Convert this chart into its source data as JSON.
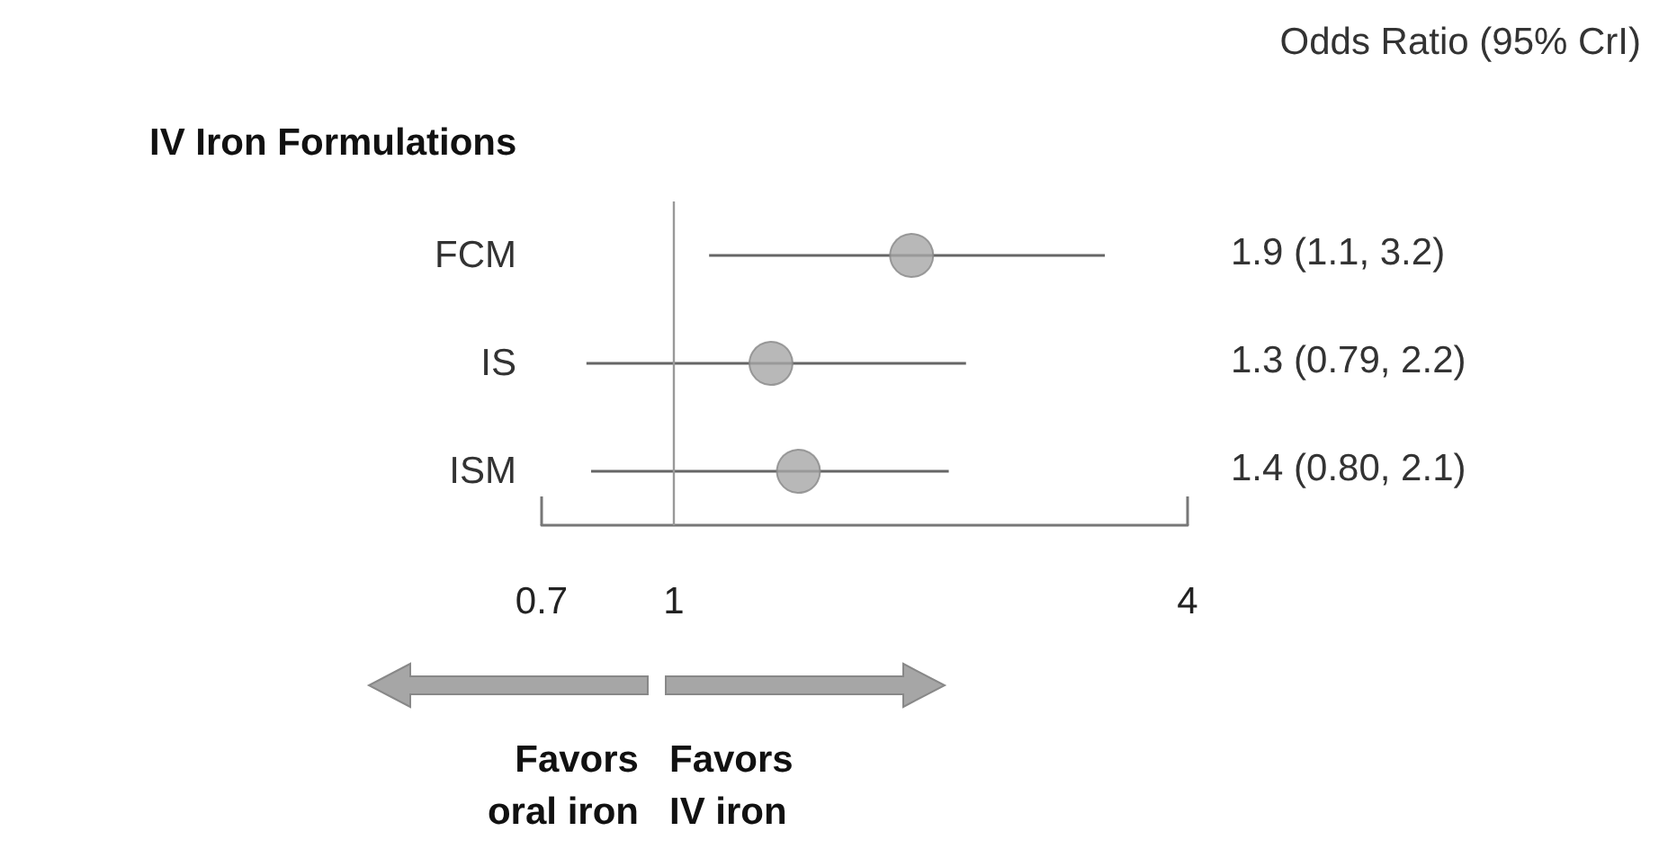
{
  "chart_data": {
    "type": "scatter",
    "title": "IV Iron Formulations",
    "subtitle": "Odds Ratio (95% CrI)",
    "orientation": "horizontal",
    "categories": [
      "FCM",
      "IS",
      "ISM"
    ],
    "values": [
      1.9,
      1.3,
      1.4
    ],
    "errors": [
      [
        1.1,
        3.2
      ],
      [
        0.79,
        2.2
      ],
      [
        0.8,
        2.1
      ]
    ],
    "color": "#a6a6a6",
    "log": "x",
    "xlim": [
      0.7,
      4
    ],
    "xticks": [
      0.7,
      1,
      4
    ],
    "ref_lines": [
      {
        "axis": "x",
        "value": 1
      }
    ],
    "marker": "circle",
    "grid": false,
    "annotations": [
      "Favors\noral iron",
      "Favors\nIV iron",
      "1.9 (1.1, 3.2)",
      "1.3 (0.79, 2.2)",
      "1.4 (0.80, 2.1)"
    ]
  }
}
